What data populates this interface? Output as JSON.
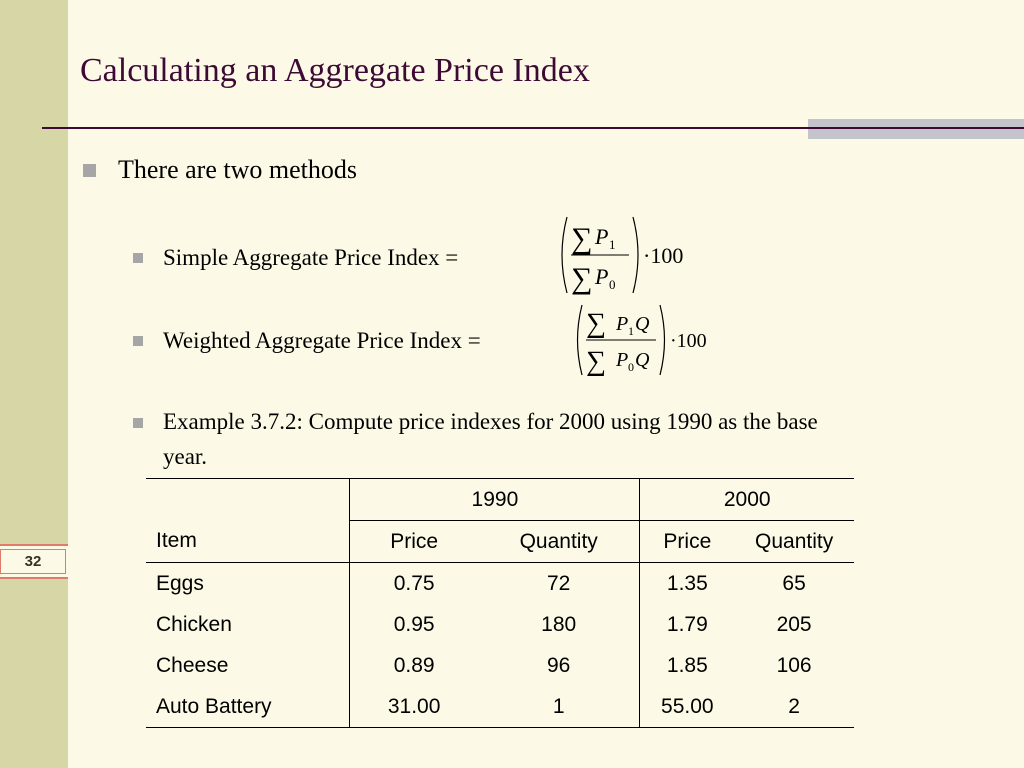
{
  "slide": {
    "title": "Calculating an Aggregate Price Index",
    "page_number": "32"
  },
  "bullets": {
    "main": "There are two methods",
    "simple_label": "Simple Aggregate Price Index =",
    "weighted_label": "Weighted Aggregate Price Index =",
    "example_line1": "Example 3.7.2: Compute price indexes for 2000 using 1990 as the base",
    "example_line2": "year."
  },
  "formulas": {
    "sum_symbol": "∑",
    "p": "P",
    "q": "Q",
    "sub_1": "1",
    "sub_0": "0",
    "multiplier": "·100"
  },
  "table": {
    "years": [
      "1990",
      "2000"
    ],
    "headers": [
      "Item",
      "Price",
      "Quantity",
      "Price",
      "Quantity"
    ],
    "rows": [
      {
        "item": "Eggs",
        "p1990": "0.75",
        "q1990": "72",
        "p2000": "1.35",
        "q2000": "65"
      },
      {
        "item": "Chicken",
        "p1990": "0.95",
        "q1990": "180",
        "p2000": "1.79",
        "q2000": "205"
      },
      {
        "item": "Cheese",
        "p1990": "0.89",
        "q1990": "96",
        "p2000": "1.85",
        "q2000": "106"
      },
      {
        "item": "Auto Battery",
        "p1990": "31.00",
        "q1990": "1",
        "p2000": "55.00",
        "q2000": "2"
      }
    ]
  }
}
